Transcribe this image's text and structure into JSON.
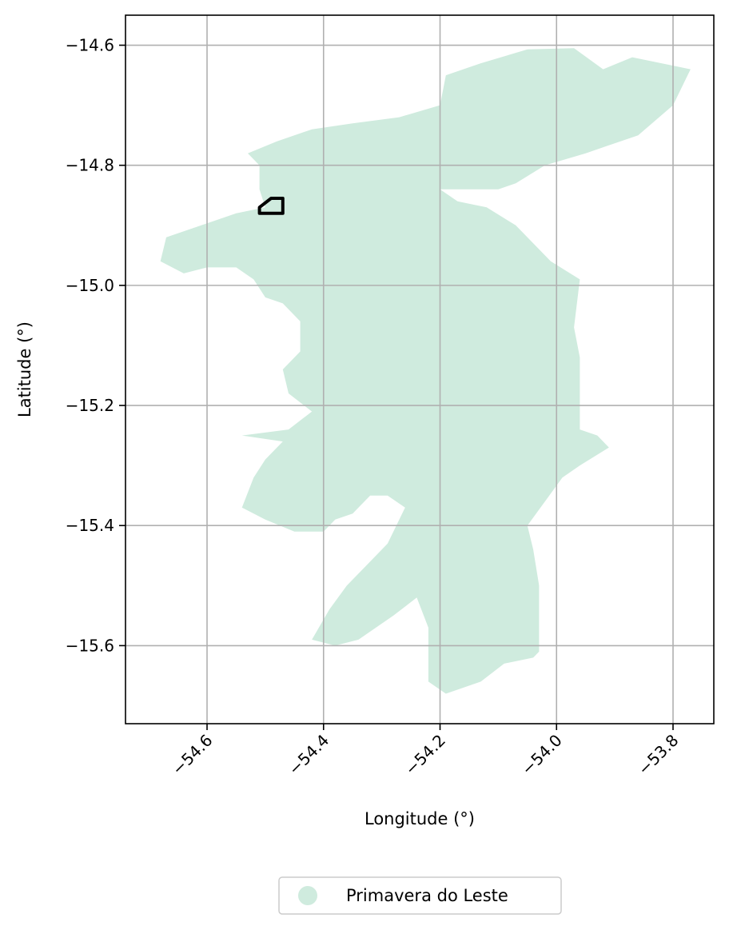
{
  "chart_data": {
    "type": "map",
    "xlabel": "Longitude (°)",
    "ylabel": "Latitude (°)",
    "xlim": [
      -54.74,
      -53.73
    ],
    "ylim": [
      -15.73,
      -14.55
    ],
    "x_ticks": [
      -54.6,
      -54.4,
      -54.2,
      -54.0,
      -53.8
    ],
    "x_tick_labels": [
      "−54.6",
      "−54.4",
      "−54.2",
      "−54.0",
      "−53.8"
    ],
    "y_ticks": [
      -14.6,
      -14.8,
      -15.0,
      -15.2,
      -15.4,
      -15.6
    ],
    "y_tick_labels": [
      "−14.6",
      "−14.8",
      "−15.0",
      "−15.2",
      "−15.4",
      "−15.6"
    ],
    "grid": true,
    "legend_position": "bottom-center",
    "legend": [
      {
        "name": "Primavera do Leste",
        "color": "#cfebde"
      }
    ],
    "region_fill": "#cfebde",
    "region_outline": [
      [
        -54.13,
        -14.63
      ],
      [
        -54.05,
        -14.607
      ],
      [
        -53.97,
        -14.605
      ],
      [
        -53.92,
        -14.64
      ],
      [
        -53.87,
        -14.62
      ],
      [
        -53.77,
        -14.64
      ],
      [
        -53.8,
        -14.7
      ],
      [
        -53.86,
        -14.75
      ],
      [
        -53.95,
        -14.78
      ],
      [
        -54.02,
        -14.8
      ],
      [
        -54.07,
        -14.83
      ],
      [
        -54.1,
        -14.84
      ],
      [
        -54.2,
        -14.84
      ],
      [
        -54.17,
        -14.86
      ],
      [
        -54.12,
        -14.87
      ],
      [
        -54.07,
        -14.9
      ],
      [
        -54.01,
        -14.96
      ],
      [
        -53.96,
        -14.99
      ],
      [
        -53.97,
        -15.07
      ],
      [
        -53.96,
        -15.12
      ],
      [
        -53.96,
        -15.19
      ],
      [
        -53.96,
        -15.24
      ],
      [
        -53.93,
        -15.25
      ],
      [
        -53.91,
        -15.27
      ],
      [
        -53.96,
        -15.3
      ],
      [
        -53.99,
        -15.32
      ],
      [
        -54.02,
        -15.36
      ],
      [
        -54.05,
        -15.4
      ],
      [
        -54.04,
        -15.44
      ],
      [
        -54.03,
        -15.5
      ],
      [
        -54.03,
        -15.56
      ],
      [
        -54.03,
        -15.61
      ],
      [
        -54.04,
        -15.62
      ],
      [
        -54.09,
        -15.63
      ],
      [
        -54.13,
        -15.66
      ],
      [
        -54.19,
        -15.68
      ],
      [
        -54.22,
        -15.66
      ],
      [
        -54.22,
        -15.62
      ],
      [
        -54.22,
        -15.57
      ],
      [
        -54.24,
        -15.52
      ],
      [
        -54.28,
        -15.55
      ],
      [
        -54.34,
        -15.59
      ],
      [
        -54.38,
        -15.6
      ],
      [
        -54.42,
        -15.59
      ],
      [
        -54.39,
        -15.54
      ],
      [
        -54.36,
        -15.5
      ],
      [
        -54.32,
        -15.46
      ],
      [
        -54.29,
        -15.43
      ],
      [
        -54.26,
        -15.37
      ],
      [
        -54.29,
        -15.35
      ],
      [
        -54.32,
        -15.35
      ],
      [
        -54.35,
        -15.38
      ],
      [
        -54.38,
        -15.39
      ],
      [
        -54.4,
        -15.41
      ],
      [
        -54.45,
        -15.41
      ],
      [
        -54.5,
        -15.39
      ],
      [
        -54.54,
        -15.37
      ],
      [
        -54.52,
        -15.32
      ],
      [
        -54.5,
        -15.29
      ],
      [
        -54.47,
        -15.26
      ],
      [
        -54.54,
        -15.25
      ],
      [
        -54.46,
        -15.24
      ],
      [
        -54.42,
        -15.21
      ],
      [
        -54.46,
        -15.18
      ],
      [
        -54.47,
        -15.14
      ],
      [
        -54.44,
        -15.11
      ],
      [
        -54.44,
        -15.06
      ],
      [
        -54.47,
        -15.03
      ],
      [
        -54.5,
        -15.02
      ],
      [
        -54.52,
        -14.99
      ],
      [
        -54.55,
        -14.97
      ],
      [
        -54.6,
        -14.97
      ],
      [
        -54.64,
        -14.98
      ],
      [
        -54.68,
        -14.96
      ],
      [
        -54.67,
        -14.92
      ],
      [
        -54.55,
        -14.88
      ],
      [
        -54.5,
        -14.87
      ],
      [
        -54.51,
        -14.84
      ],
      [
        -54.51,
        -14.8
      ],
      [
        -54.53,
        -14.78
      ],
      [
        -54.48,
        -14.76
      ],
      [
        -54.42,
        -14.74
      ],
      [
        -54.35,
        -14.73
      ],
      [
        -54.27,
        -14.72
      ],
      [
        -54.2,
        -14.7
      ],
      [
        -54.19,
        -14.65
      ]
    ],
    "highlight_outline": [
      [
        -54.51,
        -14.87
      ],
      [
        -54.49,
        -14.855
      ],
      [
        -54.47,
        -14.855
      ],
      [
        -54.47,
        -14.88
      ],
      [
        -54.51,
        -14.88
      ]
    ]
  }
}
